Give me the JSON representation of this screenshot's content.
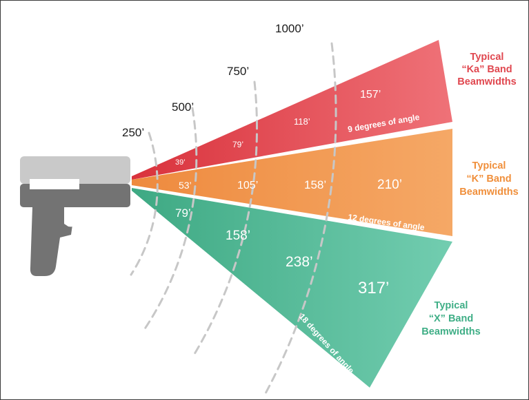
{
  "distance_labels": [
    "250’",
    "500’",
    "750’",
    "1000’"
  ],
  "bands": [
    {
      "id": "ka",
      "color": "#e5535d",
      "label_color": "#e0474f",
      "label_lines": [
        "Typical",
        "“Ka” Band",
        "Beamwidths"
      ],
      "angle_text": "9 degrees of angle",
      "widths": [
        "39’",
        "79’",
        "118’",
        "157’"
      ]
    },
    {
      "id": "k",
      "color": "#f29b55",
      "label_color": "#f08f3b",
      "label_lines": [
        "Typical",
        "“K” Band",
        "Beamwidths"
      ],
      "angle_text": "12 degrees of angle",
      "widths": [
        "53’",
        "105’",
        "158’",
        "210’"
      ]
    },
    {
      "id": "x",
      "color": "#5bbf9d",
      "label_color": "#3fae86",
      "label_lines": [
        "Typical",
        "“X” Band",
        "Beamwidths"
      ],
      "angle_text": "18 degrees of angle",
      "widths": [
        "79’",
        "158’",
        "238’",
        "317’"
      ]
    }
  ]
}
